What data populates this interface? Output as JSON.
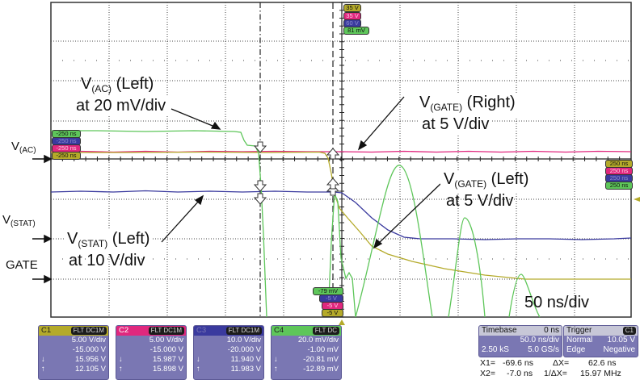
{
  "annotations": {
    "vac_left": {
      "name": "V",
      "sub": "(AC)",
      "suffix": " (Left)",
      "scale": "at 20 mV/div"
    },
    "vgate_right": {
      "name": "V",
      "sub": "(GATE)",
      "suffix": " (Right)",
      "scale": "at 5 V/div"
    },
    "vgate_left": {
      "name": "V",
      "sub": "(GATE)",
      "suffix": " (Left)",
      "scale": "at 5 V/div"
    },
    "vstat_left": {
      "name": "V",
      "sub": "(STAT)",
      "suffix": " (Left)",
      "scale": "at 10 V/div"
    },
    "timebase_note": "50 ns/div"
  },
  "side_labels": {
    "vac": {
      "name": "V",
      "sub": "(AC)"
    },
    "vstat": {
      "name": "V",
      "sub": "(STAT)"
    },
    "gate": "GATE"
  },
  "top_tags": [
    "35 V",
    "35 V",
    "60 V",
    "81 mV"
  ],
  "left_tags": [
    "-250 ns",
    "-250 ns",
    "-250 ns",
    "-250 ns"
  ],
  "right_tags": [
    "250 ns",
    "250 ns",
    "250 ns",
    "250 ns"
  ],
  "bottom_tags": [
    "-79 mV",
    "-5 V",
    "-5 V",
    "-5 V"
  ],
  "channels": [
    {
      "name": "C1",
      "flags": "FLT DC1M",
      "color": "#b4aa2a",
      "vdiv": "5.00 V/div",
      "offset": "-15.000 V",
      "down": "15.956 V",
      "up": "12.105 V"
    },
    {
      "name": "C2",
      "flags": "FLT DC1M",
      "color": "#e0287e",
      "vdiv": "5.00 V/div",
      "offset": "-15.000 V",
      "down": "15.987 V",
      "up": "15.898 V"
    },
    {
      "name": "C3",
      "flags": "FLT DC1M",
      "color": "#3a3a9e",
      "vdiv": "10.0 V/div",
      "offset": "-20.000 V",
      "down": "11.940 V",
      "up": "11.983 V"
    },
    {
      "name": "C4",
      "flags": "FLT DC",
      "color": "#5ec65a",
      "vdiv": "20.0 mV/div",
      "offset": "-1.00 mV",
      "down": "-20.81 mV",
      "up": "-12.89 mV"
    }
  ],
  "timebase": {
    "label": "Timebase",
    "delay": "0 ns",
    "tdiv": "50.0 ns/div",
    "samples": "2.50 kS",
    "rate": "5.0 GS/s"
  },
  "trigger": {
    "label": "Trigger",
    "source": "C1",
    "mode": "Normal",
    "level": "10.05 V",
    "type": "Edge",
    "slope": "Negative"
  },
  "cursors": {
    "x1_label": "X1=",
    "x1": "-69.6 ns",
    "x2_label": "X2=",
    "x2": "-7.0 ns",
    "dx_label": "ΔX=",
    "dx": "62.6 ns",
    "inv_dx_label": "1/ΔX=",
    "inv_dx": "15.97 MHz"
  },
  "colors": {
    "c1": "#b4aa2a",
    "c2": "#e0287e",
    "c3": "#3a3a9e",
    "c4": "#5ec65a",
    "panel": "#7a77b3"
  }
}
